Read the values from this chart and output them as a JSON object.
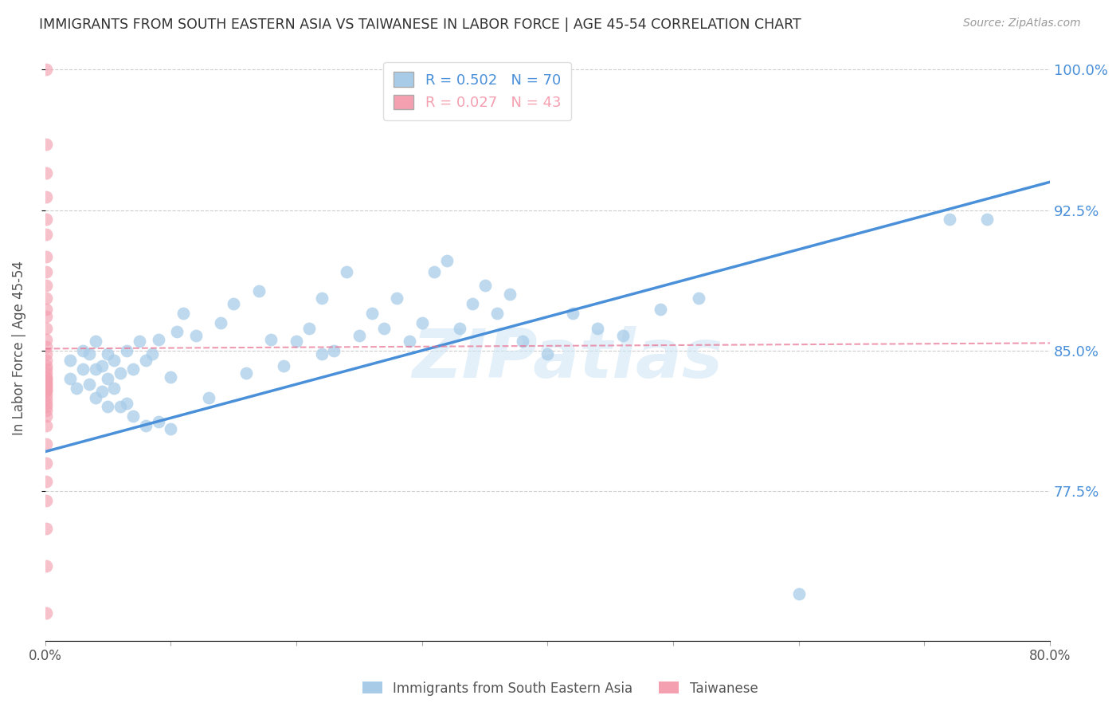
{
  "title": "IMMIGRANTS FROM SOUTH EASTERN ASIA VS TAIWANESE IN LABOR FORCE | AGE 45-54 CORRELATION CHART",
  "source": "Source: ZipAtlas.com",
  "ylabel": "In Labor Force | Age 45-54",
  "xmin": 0.0,
  "xmax": 0.8,
  "ymin": 0.695,
  "ymax": 1.008,
  "yticks": [
    0.775,
    0.85,
    0.925,
    1.0
  ],
  "ytick_labels": [
    "77.5%",
    "85.0%",
    "92.5%",
    "100.0%"
  ],
  "xticks": [
    0.0,
    0.1,
    0.2,
    0.3,
    0.4,
    0.5,
    0.6,
    0.7,
    0.8
  ],
  "xtick_labels": [
    "0.0%",
    "",
    "",
    "",
    "",
    "",
    "",
    "",
    "80.0%"
  ],
  "blue_R": 0.502,
  "blue_N": 70,
  "pink_R": 0.027,
  "pink_N": 43,
  "blue_color": "#a8cce8",
  "pink_color": "#f4a0b0",
  "blue_line_color": "#4a90d9",
  "pink_line_color": "#e87090",
  "legend_blue_label": "Immigrants from South Eastern Asia",
  "legend_pink_label": "Taiwanese",
  "watermark": "ZIPatlas",
  "blue_scatter_x": [
    0.02,
    0.02,
    0.025,
    0.03,
    0.03,
    0.035,
    0.035,
    0.04,
    0.04,
    0.04,
    0.045,
    0.045,
    0.05,
    0.05,
    0.05,
    0.055,
    0.055,
    0.06,
    0.06,
    0.065,
    0.065,
    0.07,
    0.07,
    0.075,
    0.08,
    0.08,
    0.085,
    0.09,
    0.09,
    0.1,
    0.1,
    0.105,
    0.11,
    0.12,
    0.13,
    0.14,
    0.15,
    0.16,
    0.17,
    0.18,
    0.19,
    0.2,
    0.21,
    0.22,
    0.22,
    0.23,
    0.24,
    0.25,
    0.26,
    0.27,
    0.28,
    0.29,
    0.3,
    0.31,
    0.32,
    0.33,
    0.34,
    0.35,
    0.36,
    0.37,
    0.38,
    0.4,
    0.42,
    0.44,
    0.46,
    0.49,
    0.52,
    0.6,
    0.72,
    0.75
  ],
  "blue_scatter_y": [
    0.835,
    0.845,
    0.83,
    0.84,
    0.85,
    0.832,
    0.848,
    0.825,
    0.84,
    0.855,
    0.828,
    0.842,
    0.82,
    0.835,
    0.848,
    0.83,
    0.845,
    0.82,
    0.838,
    0.822,
    0.85,
    0.815,
    0.84,
    0.855,
    0.81,
    0.845,
    0.848,
    0.812,
    0.856,
    0.808,
    0.836,
    0.86,
    0.87,
    0.858,
    0.825,
    0.865,
    0.875,
    0.838,
    0.882,
    0.856,
    0.842,
    0.855,
    0.862,
    0.848,
    0.878,
    0.85,
    0.892,
    0.858,
    0.87,
    0.862,
    0.878,
    0.855,
    0.865,
    0.892,
    0.898,
    0.862,
    0.875,
    0.885,
    0.87,
    0.88,
    0.855,
    0.848,
    0.87,
    0.862,
    0.858,
    0.872,
    0.878,
    0.72,
    0.92,
    0.92
  ],
  "pink_scatter_x": [
    0.001,
    0.001,
    0.001,
    0.001,
    0.001,
    0.001,
    0.001,
    0.001,
    0.001,
    0.001,
    0.001,
    0.001,
    0.001,
    0.001,
    0.001,
    0.001,
    0.001,
    0.001,
    0.001,
    0.001,
    0.001,
    0.001,
    0.001,
    0.001,
    0.001,
    0.001,
    0.001,
    0.001,
    0.001,
    0.001,
    0.001,
    0.001,
    0.001,
    0.001,
    0.001,
    0.001,
    0.001,
    0.001,
    0.001,
    0.001,
    0.001,
    0.001,
    0.001
  ],
  "pink_scatter_y": [
    1.0,
    0.96,
    0.945,
    0.932,
    0.92,
    0.912,
    0.9,
    0.892,
    0.885,
    0.878,
    0.872,
    0.868,
    0.862,
    0.856,
    0.852,
    0.848,
    0.845,
    0.842,
    0.84,
    0.838,
    0.836,
    0.835,
    0.834,
    0.833,
    0.832,
    0.831,
    0.83,
    0.829,
    0.828,
    0.826,
    0.824,
    0.822,
    0.82,
    0.818,
    0.815,
    0.81,
    0.8,
    0.79,
    0.78,
    0.77,
    0.755,
    0.735,
    0.71
  ],
  "blue_line_x0": 0.0,
  "blue_line_y0": 0.796,
  "blue_line_x1": 0.8,
  "blue_line_y1": 0.94,
  "pink_line_x0": 0.0,
  "pink_line_y0": 0.851,
  "pink_line_x1": 0.8,
  "pink_line_y1": 0.854
}
